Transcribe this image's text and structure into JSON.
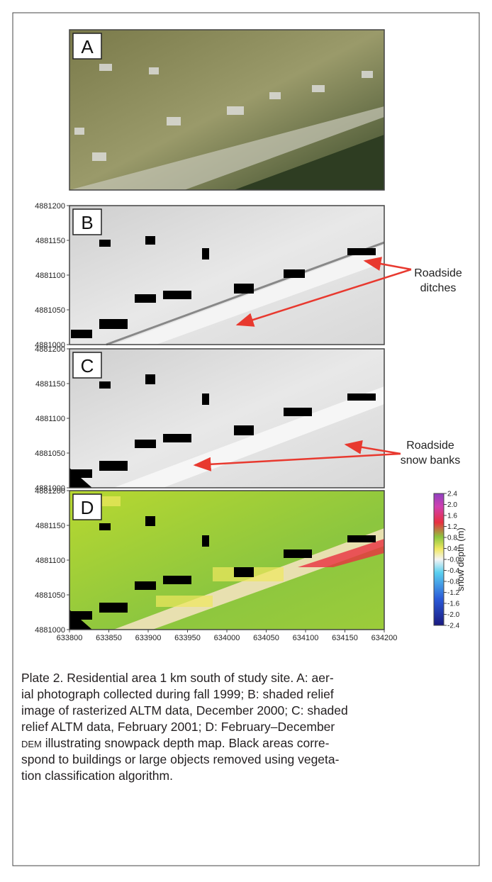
{
  "panels": [
    {
      "label": "A"
    },
    {
      "label": "B"
    },
    {
      "label": "C"
    },
    {
      "label": "D"
    }
  ],
  "y_axis": {
    "lim": [
      4881000,
      4881200
    ],
    "ticks": [
      4881000,
      4881050,
      4881100,
      4881150,
      4881200
    ]
  },
  "x_axis": {
    "lim": [
      633800,
      634200
    ],
    "ticks": [
      633800,
      633850,
      633900,
      633950,
      634000,
      634050,
      634100,
      634150,
      634200
    ]
  },
  "annotations": {
    "b": [
      "Roadside",
      "ditches"
    ],
    "c": [
      "Roadside",
      "snow banks"
    ]
  },
  "colorbar": {
    "label": "snow depth (m)",
    "lim": [
      -2.4,
      2.4
    ],
    "ticks": [
      {
        "value": 2.4,
        "label": "2.4"
      },
      {
        "value": 2,
        "label": "2.0"
      },
      {
        "value": 1.6,
        "label": "1.6"
      },
      {
        "value": 1.2,
        "label": "1.2"
      },
      {
        "value": 0.8,
        "label": "0.8"
      },
      {
        "value": 0.4,
        "label": "0.4"
      },
      {
        "value": 0,
        "label": "-0.0"
      },
      {
        "value": -0.4,
        "label": "-0.4"
      },
      {
        "value": -0.8,
        "label": "-0.8"
      },
      {
        "value": -1.2,
        "label": "-1.2"
      },
      {
        "value": -1.6,
        "label": "-1.6"
      },
      {
        "value": -2,
        "label": "-2.0"
      },
      {
        "value": -2.4,
        "label": "-2.4"
      }
    ]
  },
  "caption": {
    "lines": [
      "Plate 2.  Residential area 1 km south of study site. A: aer-",
      "ial photograph collected during fall 1999; B: shaded relief",
      "image of rasterized ALTM data, December 2000; C: shaded",
      "relief ALTM data, February 2001; D: February–December"
    ],
    "abbrev": "DEM",
    "rest": [
      " illustrating snowpack depth map. Black areas corre-",
      "spond to buildings or large objects removed using vegeta-",
      "tion classification algorithm."
    ]
  }
}
